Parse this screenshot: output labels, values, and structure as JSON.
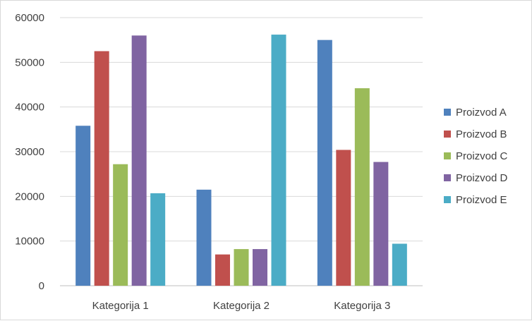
{
  "chart_data": {
    "type": "bar",
    "title": "",
    "xlabel": "",
    "ylabel": "",
    "categories": [
      "Kategorija 1",
      "Kategorija 2",
      "Kategorija 3"
    ],
    "ylim": [
      0,
      60000
    ],
    "yticks": [
      0,
      10000,
      20000,
      30000,
      40000,
      50000,
      60000
    ],
    "grid": true,
    "legend_position": "right",
    "series": [
      {
        "name": "Proizvod A",
        "color": "#4f81bd",
        "values": [
          35800,
          21500,
          55000
        ]
      },
      {
        "name": "Proizvod B",
        "color": "#c0504d",
        "values": [
          52500,
          7000,
          30400
        ]
      },
      {
        "name": "Proizvod C",
        "color": "#9bbb59",
        "values": [
          27200,
          8200,
          44200
        ]
      },
      {
        "name": "Proizvod D",
        "color": "#8064a2",
        "values": [
          56000,
          8200,
          27700
        ]
      },
      {
        "name": "Proizvod E",
        "color": "#4bacc6",
        "values": [
          20700,
          56200,
          9400
        ]
      }
    ]
  }
}
